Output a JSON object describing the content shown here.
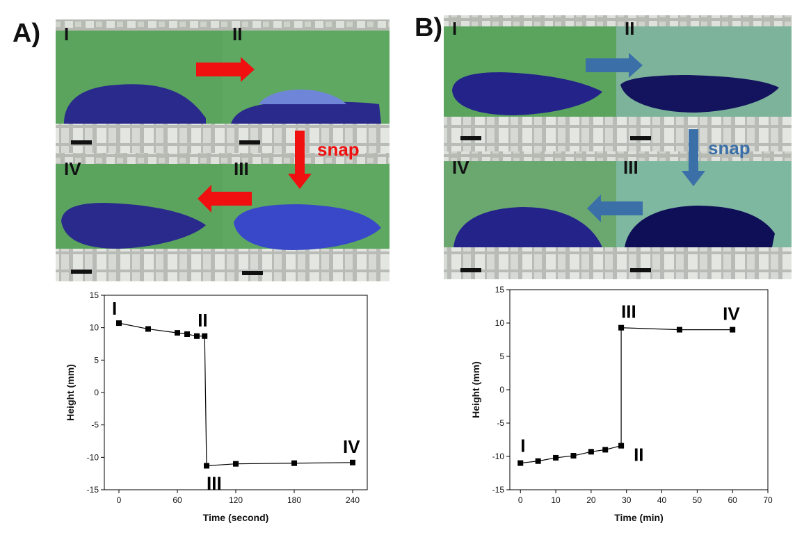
{
  "panels": {
    "a": {
      "letter": "A)",
      "frames": [
        "I",
        "II",
        "III",
        "IV"
      ],
      "snap_text": "snap",
      "arrow_color": "#f01010",
      "drop_color": "#2a2a8c"
    },
    "b": {
      "letter": "B)",
      "frames": [
        "I",
        "II",
        "III",
        "IV"
      ],
      "snap_text": "snap",
      "arrow_color": "#3b6fa8",
      "drop_color": "#1c1c78"
    }
  },
  "colors": {
    "background_green": "#5aa45e",
    "ledge_gray": "#c8cbc6",
    "line": "#000000"
  },
  "chart_data": [
    {
      "type": "line",
      "title": "",
      "xlabel": "Time (second)",
      "ylabel": "Height (mm)",
      "xlim": [
        -15,
        255
      ],
      "ylim": [
        -15,
        15
      ],
      "xticks": [
        0,
        60,
        120,
        180,
        240
      ],
      "yticks": [
        -15,
        -10,
        -5,
        0,
        5,
        10,
        15
      ],
      "series": [
        {
          "name": "height",
          "x": [
            0,
            30,
            60,
            70,
            80,
            88,
            90,
            120,
            180,
            240
          ],
          "y": [
            10.7,
            9.8,
            9.2,
            9.0,
            8.7,
            8.7,
            -11.3,
            -11.0,
            -10.9,
            -10.8
          ]
        }
      ],
      "annotations": [
        {
          "text": "I",
          "x": 0,
          "y": 10.7
        },
        {
          "text": "II",
          "x": 88,
          "y": 8.7
        },
        {
          "text": "III",
          "x": 90,
          "y": -11.3
        },
        {
          "text": "IV",
          "x": 240,
          "y": -10.8
        }
      ]
    },
    {
      "type": "line",
      "title": "",
      "xlabel": "Time (min)",
      "ylabel": "Height (mm)",
      "xlim": [
        -3,
        70
      ],
      "ylim": [
        -15,
        15
      ],
      "xticks": [
        0,
        10,
        20,
        30,
        40,
        50,
        60,
        70
      ],
      "yticks": [
        -15,
        -10,
        -5,
        0,
        5,
        10,
        15
      ],
      "series": [
        {
          "name": "height",
          "x": [
            0,
            5,
            10,
            15,
            20,
            24,
            28.5,
            28.5,
            45,
            60
          ],
          "y": [
            -11.0,
            -10.7,
            -10.2,
            -9.9,
            -9.3,
            -9.0,
            -8.4,
            9.3,
            9.0,
            9.0
          ]
        }
      ],
      "annotations": [
        {
          "text": "I",
          "x": 0,
          "y": -11.0
        },
        {
          "text": "II",
          "x": 28.5,
          "y": -8.4
        },
        {
          "text": "III",
          "x": 28.5,
          "y": 9.3
        },
        {
          "text": "IV",
          "x": 60,
          "y": 9.0
        }
      ]
    }
  ]
}
